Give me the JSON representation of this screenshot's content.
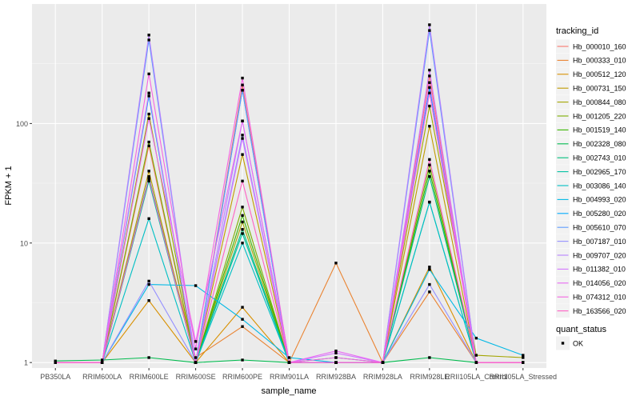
{
  "chart_data": {
    "type": "line",
    "xlabel": "sample_name",
    "ylabel": "FPKM + 1",
    "y_scale": "log10",
    "ylim": [
      0.9,
      1000
    ],
    "y_ticks": [
      1,
      10,
      100
    ],
    "y_tick_labels": [
      "1",
      "10",
      "100"
    ],
    "grid": true,
    "legend_position": "right",
    "categories": [
      "PB350LA",
      "RRIM600LA",
      "RRIM600LE",
      "RRIM600SE",
      "RRIM600PE",
      "RRIM901LA",
      "RRIM928BA",
      "RRIM928LA",
      "RRIM928LE",
      "RRII105LA_Control",
      "RRII105LA_Stressed"
    ],
    "legend_title": "tracking_id",
    "series": [
      {
        "name": "Hb_000010_160",
        "color": "#F8766D",
        "values": [
          1.0,
          1.0,
          65,
          1.0,
          210,
          1.0,
          1.0,
          1.0,
          250,
          1.0,
          1.0
        ]
      },
      {
        "name": "Hb_000333_010",
        "color": "#EA8331",
        "values": [
          1.0,
          1.0,
          35,
          1.1,
          2.0,
          1.0,
          6.8,
          1.0,
          3.9,
          1.0,
          1.0
        ]
      },
      {
        "name": "Hb_000512_120",
        "color": "#D89000",
        "values": [
          1.0,
          1.0,
          3.3,
          1.0,
          2.9,
          1.0,
          1.0,
          1.0,
          6.3,
          1.0,
          1.0
        ]
      },
      {
        "name": "Hb_000731_150",
        "color": "#C09B00",
        "values": [
          1.0,
          1.0,
          40,
          1.0,
          55,
          1.0,
          1.0,
          1.0,
          95,
          1.0,
          1.0
        ]
      },
      {
        "name": "Hb_000844_080",
        "color": "#A3A500",
        "values": [
          1.0,
          1.0,
          120,
          1.0,
          15,
          1.0,
          1.0,
          1.0,
          140,
          1.15,
          1.1
        ]
      },
      {
        "name": "Hb_001205_220",
        "color": "#7CAE00",
        "values": [
          1.0,
          1.0,
          70,
          1.0,
          20,
          1.0,
          1.0,
          1.0,
          45,
          1.0,
          1.0
        ]
      },
      {
        "name": "Hb_001519_140",
        "color": "#39B600",
        "values": [
          1.0,
          1.0,
          34,
          1.0,
          17,
          1.0,
          1.0,
          1.0,
          40,
          1.0,
          1.0
        ]
      },
      {
        "name": "Hb_002328_080",
        "color": "#00BB4E",
        "values": [
          1.03,
          1.05,
          1.1,
          1.0,
          1.05,
          1.0,
          1.0,
          1.0,
          1.1,
          1.0,
          1.0
        ]
      },
      {
        "name": "Hb_002743_010",
        "color": "#00BF7D",
        "values": [
          1.0,
          1.0,
          36,
          1.0,
          13,
          1.0,
          1.1,
          1.0,
          36,
          1.0,
          1.0
        ]
      },
      {
        "name": "Hb_002965_170",
        "color": "#00C1A3",
        "values": [
          1.0,
          1.0,
          33,
          1.0,
          12,
          1.0,
          1.0,
          1.0,
          22,
          1.0,
          1.0
        ]
      },
      {
        "name": "Hb_003086_140",
        "color": "#00BFC4",
        "values": [
          1.0,
          1.0,
          16,
          1.0,
          10,
          1.0,
          1.0,
          1.0,
          22,
          1.0,
          1.0
        ]
      },
      {
        "name": "Hb_004993_020",
        "color": "#00B8E5",
        "values": [
          1.0,
          1.0,
          4.5,
          4.4,
          2.3,
          1.1,
          1.0,
          1.0,
          6.0,
          1.6,
          1.15
        ]
      },
      {
        "name": "Hb_005280_020",
        "color": "#00ABFD",
        "values": [
          1.0,
          1.0,
          170,
          1.0,
          190,
          1.0,
          1.0,
          1.0,
          200,
          1.0,
          1.0
        ]
      },
      {
        "name": "Hb_005610_070",
        "color": "#619CFF",
        "values": [
          1.0,
          1.0,
          500,
          1.0,
          190,
          1.0,
          1.0,
          1.0,
          600,
          1.0,
          1.0
        ]
      },
      {
        "name": "Hb_007187_010",
        "color": "#9590FF",
        "values": [
          1.0,
          1.0,
          4.8,
          1.0,
          80,
          1.0,
          1.0,
          1.0,
          4.5,
          1.0,
          1.0
        ]
      },
      {
        "name": "Hb_009707_020",
        "color": "#B983FF",
        "values": [
          1.0,
          1.0,
          550,
          1.0,
          105,
          1.0,
          1.0,
          1.0,
          670,
          1.0,
          1.0
        ]
      },
      {
        "name": "Hb_011382_010",
        "color": "#D376FF",
        "values": [
          1.0,
          1.0,
          180,
          1.0,
          75,
          1.0,
          1.2,
          1.0,
          280,
          1.0,
          1.0
        ]
      },
      {
        "name": "Hb_014056_020",
        "color": "#E76BF3",
        "values": [
          1.0,
          1.0,
          110,
          1.5,
          105,
          1.0,
          1.25,
          1.0,
          220,
          1.0,
          1.0
        ]
      },
      {
        "name": "Hb_074312_010",
        "color": "#F564E3",
        "values": [
          1.0,
          1.0,
          260,
          1.3,
          240,
          1.0,
          1.1,
          1.0,
          180,
          1.0,
          1.0
        ]
      },
      {
        "name": "Hb_163566_020",
        "color": "#FF61C3",
        "values": [
          1.0,
          1.0,
          35,
          1.0,
          33,
          1.0,
          1.0,
          1.0,
          50,
          1.0,
          1.0
        ]
      }
    ],
    "point_legend": {
      "title": "quant_status",
      "items": [
        {
          "label": "OK",
          "symbol": "square"
        }
      ]
    }
  }
}
